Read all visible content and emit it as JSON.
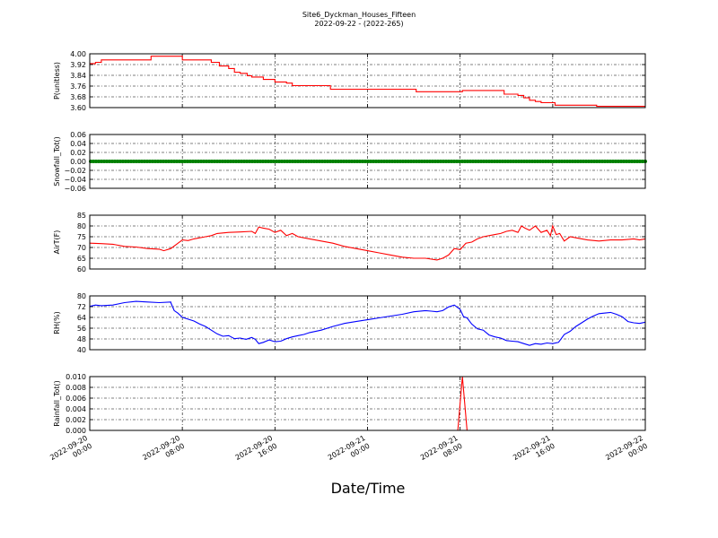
{
  "title": "Site6_Dyckman_Houses_Fifteen",
  "subtitle": "2022-09-22 - (2022-265)",
  "xlabel": "Date/Time",
  "chart_data": {
    "type": "line",
    "x_tick_labels": [
      [
        "2022-09-20",
        "00:00"
      ],
      [
        "2022-09-20",
        "08:00"
      ],
      [
        "2022-09-20",
        "16:00"
      ],
      [
        "2022-09-21",
        "00:00"
      ],
      [
        "2022-09-21",
        "08:00"
      ],
      [
        "2022-09-21",
        "16:00"
      ],
      [
        "2022-09-22",
        "00:00"
      ]
    ],
    "xlim_hours": [
      0,
      48
    ],
    "grid": true,
    "panels": [
      {
        "ylabel": "P(unitless)",
        "ylim": [
          3.56,
          4.0
        ],
        "yticks": [
          "3.60",
          "3.68",
          "3.76",
          "3.84",
          "3.92",
          "4.00"
        ],
        "color": "#ff0000",
        "step": true,
        "series": [
          [
            0,
            3.92
          ],
          [
            0.5,
            3.93
          ],
          [
            1,
            3.95
          ],
          [
            5,
            3.95
          ],
          [
            5.3,
            3.98
          ],
          [
            7.8,
            3.98
          ],
          [
            8,
            3.95
          ],
          [
            10,
            3.95
          ],
          [
            10.5,
            3.93
          ],
          [
            11.2,
            3.9
          ],
          [
            12,
            3.88
          ],
          [
            12.5,
            3.85
          ],
          [
            13,
            3.84
          ],
          [
            13.6,
            3.82
          ],
          [
            14,
            3.81
          ],
          [
            15,
            3.79
          ],
          [
            16,
            3.77
          ],
          [
            17,
            3.76
          ],
          [
            17.5,
            3.74
          ],
          [
            20.5,
            3.74
          ],
          [
            20.8,
            3.71
          ],
          [
            28,
            3.71
          ],
          [
            28.2,
            3.69
          ],
          [
            32,
            3.69
          ],
          [
            32.2,
            3.7
          ],
          [
            35.5,
            3.7
          ],
          [
            35.8,
            3.67
          ],
          [
            37,
            3.66
          ],
          [
            37.5,
            3.64
          ],
          [
            38,
            3.62
          ],
          [
            38.5,
            3.61
          ],
          [
            39,
            3.6
          ],
          [
            40,
            3.6
          ],
          [
            40.2,
            3.58
          ],
          [
            43.5,
            3.58
          ],
          [
            43.8,
            3.57
          ],
          [
            48,
            3.57
          ]
        ]
      },
      {
        "ylabel": "Snowfall_Tot()",
        "ylim": [
          -0.06,
          0.06
        ],
        "yticks": [
          "−0.06",
          "−0.04",
          "−0.02",
          "0.00",
          "0.02",
          "0.04",
          "0.06"
        ],
        "color": "#008000",
        "marker": true,
        "series": [
          [
            0,
            0
          ],
          [
            48,
            0
          ]
        ]
      },
      {
        "ylabel": "AirT(F)",
        "ylim": [
          60,
          85
        ],
        "yticks": [
          "60",
          "65",
          "70",
          "75",
          "80",
          "85"
        ],
        "color": "#ff0000",
        "series": [
          [
            0,
            72
          ],
          [
            1,
            71.8
          ],
          [
            2,
            71.5
          ],
          [
            3,
            70.5
          ],
          [
            4,
            70.2
          ],
          [
            5,
            69.5
          ],
          [
            6,
            69.2
          ],
          [
            6.4,
            68.5
          ],
          [
            7,
            69.5
          ],
          [
            7.5,
            71.5
          ],
          [
            8,
            73.5
          ],
          [
            8.5,
            73.2
          ],
          [
            9,
            74
          ],
          [
            10,
            75
          ],
          [
            10.5,
            75.5
          ],
          [
            11,
            76.5
          ],
          [
            12,
            77
          ],
          [
            13,
            77.2
          ],
          [
            14,
            77.5
          ],
          [
            14.3,
            76.5
          ],
          [
            14.6,
            79.5
          ],
          [
            15,
            79
          ],
          [
            15.5,
            78.5
          ],
          [
            16,
            77
          ],
          [
            16.5,
            78
          ],
          [
            17,
            75.5
          ],
          [
            17.5,
            76.5
          ],
          [
            18,
            75
          ],
          [
            19,
            74
          ],
          [
            20,
            73
          ],
          [
            21,
            72
          ],
          [
            22,
            70.5
          ],
          [
            23,
            69.5
          ],
          [
            24,
            68.5
          ],
          [
            25,
            67.5
          ],
          [
            26,
            66.5
          ],
          [
            27,
            65.5
          ],
          [
            28,
            65
          ],
          [
            29,
            65
          ],
          [
            30,
            64.2
          ],
          [
            30.5,
            65
          ],
          [
            31,
            66.5
          ],
          [
            31.5,
            69.5
          ],
          [
            32,
            69
          ],
          [
            32.5,
            72
          ],
          [
            33,
            72.5
          ],
          [
            33.5,
            74
          ],
          [
            34,
            75
          ],
          [
            35,
            76
          ],
          [
            35.5,
            76.5
          ],
          [
            36,
            77.5
          ],
          [
            36.5,
            78
          ],
          [
            37,
            77
          ],
          [
            37.3,
            80
          ],
          [
            37.6,
            79
          ],
          [
            38,
            78
          ],
          [
            38.5,
            80
          ],
          [
            39,
            77
          ],
          [
            39.5,
            78
          ],
          [
            39.8,
            75.5
          ],
          [
            40,
            80
          ],
          [
            40.3,
            76
          ],
          [
            40.6,
            76.5
          ],
          [
            41,
            73
          ],
          [
            41.5,
            75
          ],
          [
            42,
            74.5
          ],
          [
            43,
            73.5
          ],
          [
            44,
            73
          ],
          [
            45,
            73.5
          ],
          [
            46,
            73.5
          ],
          [
            47,
            74
          ],
          [
            47.5,
            73.5
          ],
          [
            48,
            74
          ]
        ]
      },
      {
        "ylabel": "RH(%)",
        "ylim": [
          40,
          84
        ],
        "yticks": [
          "40",
          "48",
          "56",
          "64",
          "72",
          "80"
        ],
        "color": "#0000ff",
        "series": [
          [
            0,
            75.5
          ],
          [
            0.5,
            76.5
          ],
          [
            1,
            76
          ],
          [
            2,
            76.5
          ],
          [
            3,
            78.5
          ],
          [
            4,
            79.5
          ],
          [
            5,
            79
          ],
          [
            6,
            78.5
          ],
          [
            7,
            79
          ],
          [
            7,
            78.5
          ],
          [
            7.3,
            72
          ],
          [
            7.6,
            70
          ],
          [
            8,
            66.5
          ],
          [
            9,
            63.5
          ],
          [
            9.5,
            61
          ],
          [
            10,
            59
          ],
          [
            10.5,
            56
          ],
          [
            11,
            53
          ],
          [
            11.5,
            51
          ],
          [
            12,
            51.5
          ],
          [
            12.5,
            49
          ],
          [
            13,
            49.5
          ],
          [
            13.5,
            48.5
          ],
          [
            14,
            50
          ],
          [
            14.3,
            48.5
          ],
          [
            14.6,
            45
          ],
          [
            15,
            46
          ],
          [
            15.5,
            48
          ],
          [
            16,
            46.5
          ],
          [
            16.5,
            47
          ],
          [
            17,
            49
          ],
          [
            17.5,
            50.5
          ],
          [
            18,
            51.5
          ],
          [
            18.5,
            52.5
          ],
          [
            19,
            54
          ],
          [
            20,
            56
          ],
          [
            21,
            59
          ],
          [
            22,
            61.5
          ],
          [
            23,
            63
          ],
          [
            24,
            64.5
          ],
          [
            25,
            66
          ],
          [
            26,
            67.5
          ],
          [
            27,
            69
          ],
          [
            28,
            71
          ],
          [
            29,
            72
          ],
          [
            29.5,
            71.5
          ],
          [
            30,
            71
          ],
          [
            30.5,
            72
          ],
          [
            31,
            75
          ],
          [
            31.5,
            76.5
          ],
          [
            32,
            73
          ],
          [
            32.3,
            67
          ],
          [
            32.6,
            66
          ],
          [
            33,
            61
          ],
          [
            33.5,
            57
          ],
          [
            34,
            56
          ],
          [
            34.5,
            52
          ],
          [
            35,
            50.5
          ],
          [
            35.5,
            49.5
          ],
          [
            36,
            47.5
          ],
          [
            36.5,
            47
          ],
          [
            37,
            46.5
          ],
          [
            37.5,
            45
          ],
          [
            38,
            43.5
          ],
          [
            38.5,
            45
          ],
          [
            39,
            44.5
          ],
          [
            39.5,
            45.5
          ],
          [
            40,
            45
          ],
          [
            40.5,
            46
          ],
          [
            41,
            52.5
          ],
          [
            41.5,
            55
          ],
          [
            42,
            59
          ],
          [
            42.5,
            62
          ],
          [
            43,
            65
          ],
          [
            43.5,
            67.5
          ],
          [
            44,
            69.5
          ],
          [
            45,
            70.5
          ],
          [
            45.5,
            69
          ],
          [
            46,
            67
          ],
          [
            46.5,
            63
          ],
          [
            47,
            62
          ],
          [
            47.5,
            61.5
          ],
          [
            48,
            62.5
          ]
        ]
      },
      {
        "ylabel": "Rainfall_Tot()",
        "ylim": [
          0,
          0.01
        ],
        "yticks": [
          "0.000",
          "0.002",
          "0.004",
          "0.006",
          "0.008",
          "0.010"
        ],
        "color": "#ff0000",
        "series": [
          [
            0,
            0
          ],
          [
            31.8,
            0
          ],
          [
            32.2,
            0.01
          ],
          [
            32.6,
            0
          ],
          [
            48,
            0
          ]
        ]
      }
    ]
  }
}
